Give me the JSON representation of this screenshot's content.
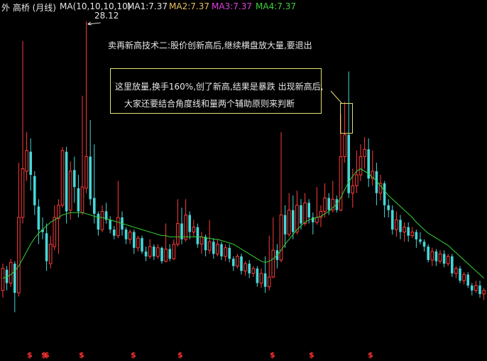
{
  "header": {
    "stock": "外 高桥 (月线)",
    "ma_label": "MA(10,10,10,10)",
    "ma1": "MA1:7.37",
    "ma2": "MA2:7.37",
    "ma3": "MA3:7.37",
    "ma4": "MA4:7.37"
  },
  "annotations": {
    "title": "卖再新高技术二:股价创新高后,继续横盘放大量,要退出",
    "box_line1": "这里放量,换手160%,创了新高,结果是暴跌 出现新高后,",
    "box_line2": "大家还要结合角度线和量两个辅助原则来判断",
    "peak_price": "28.12"
  },
  "colors": {
    "background": "#000000",
    "up": "#ff3b3b",
    "down": "#45d7d7",
    "ma_line": "#34d334",
    "header_white": "#e6e6e6",
    "ma2": "#e8c060",
    "ma3": "#e040e0",
    "ma4": "#40d040",
    "note_box": "#e0e070",
    "marker": "#ff3333"
  },
  "markers": {
    "symbol": "$",
    "count": 10
  },
  "chart_data": {
    "type": "candlestick",
    "title": "",
    "ylim": [
      3,
      29
    ],
    "grid": false,
    "candles": [
      [
        6.0,
        7.8,
        8.2,
        5.4
      ],
      [
        7.7,
        6.6,
        8.0,
        6.0
      ],
      [
        6.6,
        8.3,
        8.6,
        6.3
      ],
      [
        8.2,
        5.8,
        8.4,
        4.2
      ],
      [
        5.8,
        12.0,
        16.5,
        5.5
      ],
      [
        12.0,
        16.0,
        26.5,
        11.5
      ],
      [
        15.8,
        17.5,
        19.0,
        15.0
      ],
      [
        17.4,
        15.5,
        18.5,
        14.2
      ],
      [
        15.4,
        13.0,
        15.8,
        12.2
      ],
      [
        12.9,
        11.0,
        13.5,
        9.8
      ],
      [
        11.0,
        10.8,
        12.0,
        10.2
      ],
      [
        10.7,
        8.4,
        11.5,
        7.6
      ],
      [
        8.2,
        9.8,
        10.5,
        7.8
      ],
      [
        9.6,
        12.0,
        13.0,
        9.3
      ],
      [
        11.9,
        13.0,
        13.5,
        9.0
      ],
      [
        13.0,
        17.5,
        17.8,
        12.8
      ],
      [
        17.4,
        12.5,
        17.8,
        11.5
      ],
      [
        12.6,
        15.8,
        16.6,
        11.8
      ],
      [
        15.9,
        14.5,
        17.0,
        13.2
      ],
      [
        14.4,
        12.5,
        15.5,
        12.0
      ],
      [
        12.4,
        14.5,
        22.0,
        12.2
      ],
      [
        14.4,
        17.0,
        28.12,
        14.0
      ],
      [
        17.0,
        13.5,
        20.0,
        13.0
      ],
      [
        13.6,
        12.3,
        18.0,
        11.5
      ],
      [
        12.3,
        11.0,
        12.5,
        10.5
      ],
      [
        11.0,
        12.5,
        13.0,
        10.8
      ],
      [
        12.5,
        11.8,
        13.2,
        11.5
      ],
      [
        11.8,
        11.0,
        12.1,
        10.7
      ],
      [
        11.0,
        10.5,
        11.3,
        10.2
      ],
      [
        10.5,
        12.0,
        15.0,
        10.3
      ],
      [
        12.0,
        11.0,
        12.5,
        10.5
      ],
      [
        11.0,
        10.2,
        11.2,
        9.8
      ],
      [
        10.2,
        10.8,
        11.0,
        9.8
      ],
      [
        10.8,
        9.5,
        11.0,
        9.0
      ],
      [
        9.5,
        10.3,
        10.5,
        9.2
      ],
      [
        10.3,
        9.2,
        10.5,
        9.0
      ],
      [
        9.2,
        8.8,
        9.6,
        8.4
      ],
      [
        8.8,
        9.6,
        10.2,
        8.6
      ],
      [
        9.6,
        8.8,
        9.8,
        8.5
      ],
      [
        8.8,
        9.5,
        9.8,
        8.6
      ],
      [
        9.5,
        8.4,
        9.6,
        8.2
      ],
      [
        8.4,
        9.4,
        11.5,
        8.3
      ],
      [
        9.4,
        8.6,
        9.8,
        8.4
      ],
      [
        8.6,
        9.8,
        10.2,
        8.5
      ],
      [
        9.8,
        11.5,
        13.5,
        9.6
      ],
      [
        11.5,
        10.2,
        12.8,
        9.8
      ],
      [
        10.2,
        12.2,
        13.5,
        10.0
      ],
      [
        12.2,
        10.8,
        12.5,
        10.2
      ],
      [
        10.8,
        11.2,
        11.8,
        10.4
      ],
      [
        11.2,
        9.8,
        11.5,
        9.5
      ],
      [
        9.8,
        10.4,
        10.8,
        9.0
      ],
      [
        10.4,
        9.3,
        10.6,
        8.8
      ],
      [
        9.3,
        10.0,
        11.8,
        9.0
      ],
      [
        10.0,
        9.0,
        10.3,
        8.6
      ],
      [
        9.0,
        9.8,
        10.2,
        8.8
      ],
      [
        9.8,
        8.8,
        10.0,
        8.5
      ],
      [
        8.8,
        9.5,
        9.8,
        8.4
      ],
      [
        9.5,
        8.6,
        9.8,
        8.3
      ],
      [
        8.6,
        8.0,
        8.8,
        7.6
      ],
      [
        8.0,
        8.8,
        9.0,
        7.8
      ],
      [
        8.8,
        7.6,
        9.0,
        7.3
      ],
      [
        7.6,
        8.2,
        8.4,
        7.2
      ],
      [
        8.2,
        7.4,
        8.5,
        7.0
      ],
      [
        7.4,
        7.8,
        8.0,
        7.1
      ],
      [
        7.8,
        6.6,
        8.0,
        6.3
      ],
      [
        6.6,
        7.4,
        7.8,
        6.2
      ],
      [
        7.4,
        6.3,
        8.8,
        5.8
      ],
      [
        6.3,
        7.1,
        10.5,
        6.0
      ],
      [
        7.1,
        9.3,
        12.0,
        7.0
      ],
      [
        9.3,
        8.5,
        9.8,
        7.8
      ],
      [
        8.5,
        12.2,
        19.0,
        8.3
      ],
      [
        12.2,
        10.6,
        13.0,
        9.5
      ],
      [
        10.6,
        12.6,
        14.0,
        10.4
      ],
      [
        12.6,
        10.8,
        13.8,
        10.2
      ],
      [
        10.8,
        13.0,
        14.2,
        10.6
      ],
      [
        13.0,
        11.5,
        13.5,
        11.0
      ],
      [
        11.5,
        13.2,
        14.0,
        11.3
      ],
      [
        13.2,
        12.0,
        13.5,
        11.5
      ],
      [
        12.0,
        11.6,
        12.4,
        10.6
      ],
      [
        11.6,
        12.0,
        14.5,
        11.4
      ],
      [
        12.0,
        12.5,
        13.0,
        11.2
      ],
      [
        12.5,
        13.6,
        14.8,
        12.0
      ],
      [
        13.6,
        12.6,
        14.0,
        12.2
      ],
      [
        12.6,
        13.5,
        15.0,
        12.4
      ],
      [
        13.5,
        12.6,
        13.8,
        12.4
      ],
      [
        12.6,
        17.0,
        20.5,
        12.5
      ],
      [
        17.0,
        18.8,
        21.5,
        16.5
      ],
      [
        18.8,
        14.0,
        24.0,
        13.6
      ],
      [
        14.0,
        14.6,
        16.0,
        12.8
      ],
      [
        14.6,
        15.5,
        17.5,
        14.0
      ],
      [
        15.5,
        17.0,
        18.0,
        15.0
      ],
      [
        17.0,
        17.6,
        18.6,
        16.0
      ],
      [
        17.6,
        15.2,
        18.5,
        14.5
      ],
      [
        15.2,
        15.8,
        17.5,
        14.6
      ],
      [
        15.8,
        14.0,
        16.5,
        13.0
      ],
      [
        14.0,
        14.8,
        15.5,
        13.4
      ],
      [
        14.8,
        13.0,
        15.0,
        12.0
      ],
      [
        13.0,
        12.6,
        13.5,
        12.0
      ],
      [
        12.6,
        11.0,
        13.0,
        10.6
      ],
      [
        11.0,
        11.8,
        12.5,
        10.4
      ],
      [
        11.8,
        10.8,
        12.2,
        10.2
      ],
      [
        10.8,
        11.2,
        11.6,
        10.0
      ],
      [
        11.2,
        10.5,
        11.6,
        10.0
      ],
      [
        10.5,
        10.8,
        11.2,
        10.3
      ],
      [
        10.8,
        10.2,
        11.0,
        9.5
      ],
      [
        10.2,
        10.0,
        10.8,
        9.8
      ],
      [
        10.0,
        9.6,
        10.2,
        9.2
      ],
      [
        9.6,
        8.5,
        9.8,
        8.3
      ],
      [
        8.5,
        9.2,
        9.5,
        8.0
      ],
      [
        9.2,
        8.4,
        9.4,
        8.0
      ],
      [
        8.4,
        9.0,
        9.3,
        8.2
      ],
      [
        9.0,
        8.2,
        9.3,
        7.9
      ],
      [
        8.2,
        8.8,
        9.0,
        8.0
      ],
      [
        8.8,
        7.4,
        9.0,
        7.1
      ],
      [
        7.4,
        7.8,
        8.0,
        7.0
      ],
      [
        7.8,
        6.8,
        8.0,
        6.6
      ],
      [
        6.8,
        7.3,
        7.5,
        6.5
      ],
      [
        7.3,
        6.4,
        7.5,
        6.2
      ],
      [
        6.4,
        6.0,
        6.6,
        5.6
      ],
      [
        6.0,
        6.4,
        6.8,
        5.8
      ],
      [
        6.4,
        5.7,
        6.8,
        5.4
      ],
      [
        5.7,
        6.0,
        6.2,
        5.2
      ]
    ],
    "ma": [
      7.0,
      7.1,
      7.3,
      7.6,
      8.0,
      8.6,
      9.2,
      9.8,
      10.3,
      10.7,
      11.0,
      11.3,
      11.6,
      11.8,
      12.0,
      12.2,
      12.3,
      12.4,
      12.4,
      12.4,
      12.4,
      12.3,
      12.2,
      12.1,
      12.0,
      12.0,
      11.9,
      11.8,
      11.7,
      11.6,
      11.5,
      11.4,
      11.3,
      11.2,
      11.1,
      11.0,
      10.9,
      10.8,
      10.7,
      10.6,
      10.5,
      10.5,
      10.4,
      10.4,
      10.4,
      10.4,
      10.4,
      10.4,
      10.4,
      10.4,
      10.4,
      10.3,
      10.3,
      10.2,
      10.2,
      10.1,
      10.0,
      9.9,
      9.8,
      9.6,
      9.4,
      9.2,
      9.0,
      8.8,
      8.6,
      8.4,
      8.3,
      8.4,
      8.6,
      8.9,
      9.3,
      9.8,
      10.2,
      10.6,
      11.0,
      11.3,
      11.6,
      11.8,
      11.9,
      12.0,
      12.1,
      12.3,
      12.5,
      12.8,
      13.1,
      13.6,
      14.3,
      14.9,
      15.4,
      15.8,
      16.0,
      15.8,
      15.6,
      15.3,
      15.0,
      14.6,
      14.2,
      13.8,
      13.5,
      13.2,
      12.9,
      12.6,
      12.3,
      12.0,
      11.6,
      11.3,
      11.0,
      10.7,
      10.5,
      10.3,
      10.1,
      9.9,
      9.7,
      9.4,
      9.1,
      8.8,
      8.5,
      8.2,
      7.9,
      7.6,
      7.3,
      7.0
    ]
  }
}
